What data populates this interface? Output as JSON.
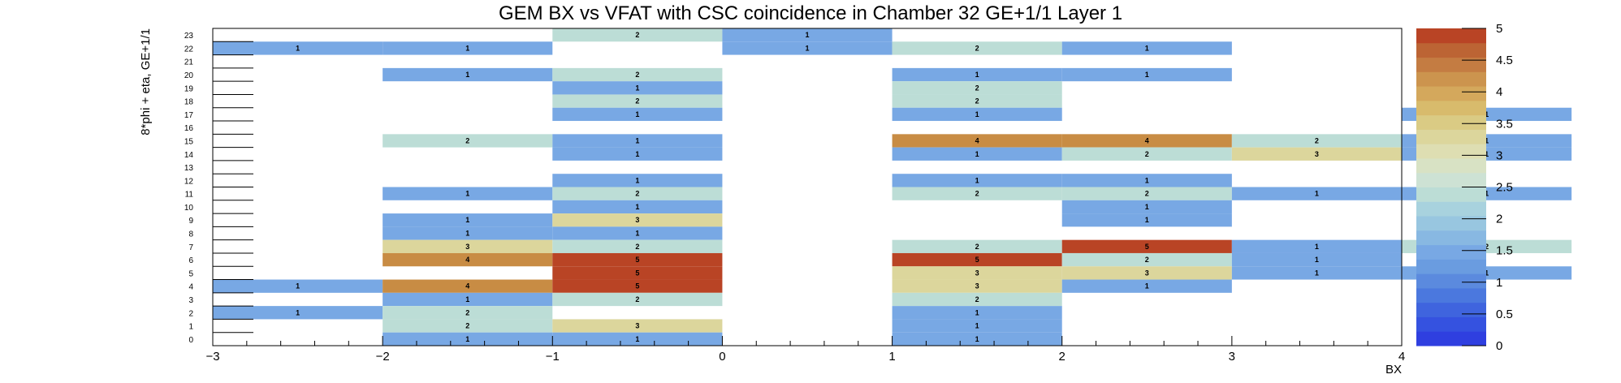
{
  "chart_data": {
    "type": "heatmap",
    "title": "GEM BX vs VFAT with CSC coincidence in Chamber 32 GE+1/1 Layer 1",
    "xlabel": "BX",
    "ylabel": "8*phi + eta, GE+1/1",
    "xlim": [
      -3,
      4
    ],
    "ylim": [
      0,
      24
    ],
    "x_ticks": [
      "−3",
      "−2",
      "−1",
      "0",
      "1",
      "2",
      "3",
      "4"
    ],
    "y_ticks": [
      "0",
      "1",
      "2",
      "3",
      "4",
      "5",
      "6",
      "7",
      "8",
      "9",
      "10",
      "11",
      "12",
      "13",
      "14",
      "15",
      "16",
      "17",
      "18",
      "19",
      "20",
      "21",
      "22",
      "23"
    ],
    "x_bins": [
      -3,
      -2,
      -1,
      0,
      1,
      2,
      3
    ],
    "z_range": [
      0,
      5
    ],
    "z_ticks": [
      "0",
      "0.5",
      "1",
      "1.5",
      "2",
      "2.5",
      "3",
      "3.5",
      "4",
      "4.5",
      "5"
    ],
    "colors": {
      "z1": "#78a8e4",
      "z2": "#bcddd6",
      "z3": "#dcd69c",
      "z4": "#c88c44",
      "z5": "#b94425"
    },
    "palette_colors": [
      "#2f3fe0",
      "#3552e0",
      "#3f64de",
      "#4b78de",
      "#5b8ade",
      "#6a9ce0",
      "#78a8e4",
      "#88b8e2",
      "#98c6e0",
      "#a8d2de",
      "#bcddd6",
      "#cde2d4",
      "#d8e2c4",
      "#dedeb2",
      "#dcd69c",
      "#dacb84",
      "#d8bb6c",
      "#d4a85c",
      "#cc944e",
      "#c47c42",
      "#bc6434",
      "#b94425"
    ],
    "cells": [
      {
        "bx": -1,
        "y": 23,
        "v": 2
      },
      {
        "bx": 0,
        "y": 23,
        "v": 1
      },
      {
        "bx": -3,
        "y": 22,
        "v": 1
      },
      {
        "bx": -2,
        "y": 22,
        "v": 1
      },
      {
        "bx": 0,
        "y": 22,
        "v": 1
      },
      {
        "bx": 1,
        "y": 22,
        "v": 2
      },
      {
        "bx": 2,
        "y": 22,
        "v": 1
      },
      {
        "bx": -2,
        "y": 20,
        "v": 1
      },
      {
        "bx": -1,
        "y": 20,
        "v": 2
      },
      {
        "bx": 1,
        "y": 20,
        "v": 1
      },
      {
        "bx": 2,
        "y": 20,
        "v": 1
      },
      {
        "bx": -1,
        "y": 19,
        "v": 1
      },
      {
        "bx": 1,
        "y": 19,
        "v": 2
      },
      {
        "bx": -1,
        "y": 18,
        "v": 2
      },
      {
        "bx": 1,
        "y": 18,
        "v": 2
      },
      {
        "bx": -1,
        "y": 17,
        "v": 1
      },
      {
        "bx": 1,
        "y": 17,
        "v": 1
      },
      {
        "bx": 4,
        "y": 17,
        "v": 1
      },
      {
        "bx": -2,
        "y": 15,
        "v": 2
      },
      {
        "bx": -1,
        "y": 15,
        "v": 1
      },
      {
        "bx": 1,
        "y": 15,
        "v": 4
      },
      {
        "bx": 2,
        "y": 15,
        "v": 4
      },
      {
        "bx": 3,
        "y": 15,
        "v": 2
      },
      {
        "bx": 4,
        "y": 15,
        "v": 1
      },
      {
        "bx": -1,
        "y": 14,
        "v": 1
      },
      {
        "bx": 1,
        "y": 14,
        "v": 1
      },
      {
        "bx": 2,
        "y": 14,
        "v": 2
      },
      {
        "bx": 3,
        "y": 14,
        "v": 3
      },
      {
        "bx": 4,
        "y": 14,
        "v": 1
      },
      {
        "bx": -1,
        "y": 12,
        "v": 1
      },
      {
        "bx": 1,
        "y": 12,
        "v": 1
      },
      {
        "bx": 2,
        "y": 12,
        "v": 1
      },
      {
        "bx": -2,
        "y": 11,
        "v": 1
      },
      {
        "bx": -1,
        "y": 11,
        "v": 2
      },
      {
        "bx": 1,
        "y": 11,
        "v": 2
      },
      {
        "bx": 2,
        "y": 11,
        "v": 2
      },
      {
        "bx": 3,
        "y": 11,
        "v": 1
      },
      {
        "bx": 4,
        "y": 11,
        "v": 1
      },
      {
        "bx": -1,
        "y": 10,
        "v": 1
      },
      {
        "bx": 2,
        "y": 10,
        "v": 1
      },
      {
        "bx": -2,
        "y": 9,
        "v": 1
      },
      {
        "bx": -1,
        "y": 9,
        "v": 3
      },
      {
        "bx": 2,
        "y": 9,
        "v": 1
      },
      {
        "bx": -2,
        "y": 8,
        "v": 1
      },
      {
        "bx": -1,
        "y": 8,
        "v": 1
      },
      {
        "bx": -2,
        "y": 7,
        "v": 3
      },
      {
        "bx": -1,
        "y": 7,
        "v": 2
      },
      {
        "bx": 1,
        "y": 7,
        "v": 2
      },
      {
        "bx": 2,
        "y": 7,
        "v": 5
      },
      {
        "bx": 3,
        "y": 7,
        "v": 1
      },
      {
        "bx": 4,
        "y": 7,
        "v": 2
      },
      {
        "bx": -2,
        "y": 6,
        "v": 4
      },
      {
        "bx": -1,
        "y": 6,
        "v": 5
      },
      {
        "bx": 1,
        "y": 6,
        "v": 5
      },
      {
        "bx": 2,
        "y": 6,
        "v": 2
      },
      {
        "bx": 3,
        "y": 6,
        "v": 1
      },
      {
        "bx": -1,
        "y": 5,
        "v": 5
      },
      {
        "bx": 1,
        "y": 5,
        "v": 3
      },
      {
        "bx": 2,
        "y": 5,
        "v": 3
      },
      {
        "bx": 3,
        "y": 5,
        "v": 1
      },
      {
        "bx": 4,
        "y": 5,
        "v": 1
      },
      {
        "bx": -3,
        "y": 4,
        "v": 1
      },
      {
        "bx": -2,
        "y": 4,
        "v": 4
      },
      {
        "bx": -1,
        "y": 4,
        "v": 5
      },
      {
        "bx": 1,
        "y": 4,
        "v": 3
      },
      {
        "bx": 2,
        "y": 4,
        "v": 1
      },
      {
        "bx": -2,
        "y": 3,
        "v": 1
      },
      {
        "bx": -1,
        "y": 3,
        "v": 2
      },
      {
        "bx": 1,
        "y": 3,
        "v": 2
      },
      {
        "bx": -3,
        "y": 2,
        "v": 1
      },
      {
        "bx": -2,
        "y": 2,
        "v": 2
      },
      {
        "bx": 1,
        "y": 2,
        "v": 1
      },
      {
        "bx": -2,
        "y": 1,
        "v": 2
      },
      {
        "bx": -1,
        "y": 1,
        "v": 3
      },
      {
        "bx": 1,
        "y": 1,
        "v": 1
      },
      {
        "bx": -2,
        "y": 0,
        "v": 1
      },
      {
        "bx": -1,
        "y": 0,
        "v": 1
      },
      {
        "bx": 1,
        "y": 0,
        "v": 1
      }
    ]
  }
}
